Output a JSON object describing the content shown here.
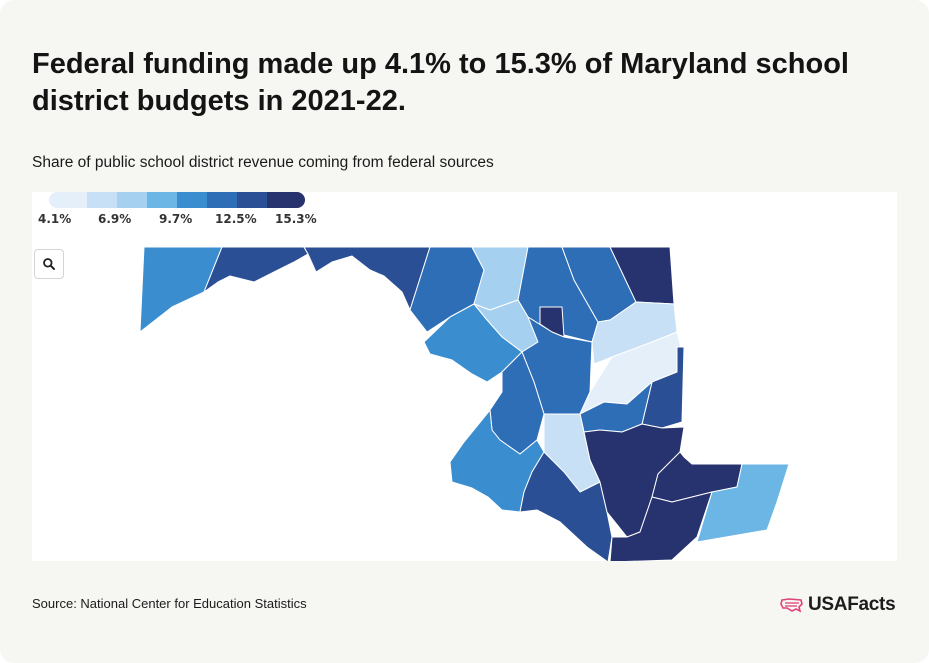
{
  "title": "Federal funding made up 4.1% to 15.3% of Maryland school district budgets in 2021-22.",
  "subtitle": "Share of public school district revenue coming from federal sources",
  "legend": {
    "colors": [
      "#e4effa",
      "#c8e0f5",
      "#a6d0ef",
      "#6cb6e6",
      "#3a8ed0",
      "#2e6eb7",
      "#2b4f94",
      "#27336f"
    ],
    "labels": [
      "4.1%",
      "6.9%",
      "9.7%",
      "12.5%",
      "15.3%"
    ]
  },
  "map_controls": {
    "zoom_icon": "magnifier-icon"
  },
  "source": "Source: National Center for Education Statistics",
  "brand": {
    "name": "USAFacts",
    "icon": "us-flag-map-icon",
    "color": "#e0437a"
  }
}
